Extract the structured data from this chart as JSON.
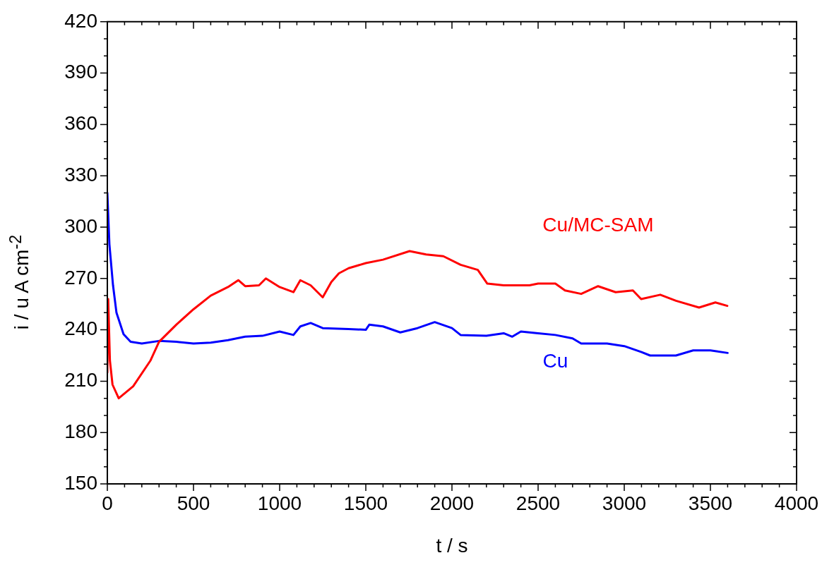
{
  "chart_data": {
    "type": "line",
    "xlabel": "t / s",
    "ylabel": "i / u A cm$^{-2}$",
    "xlim": [
      0,
      4000
    ],
    "ylim": [
      150,
      420
    ],
    "xticks": [
      0,
      {
        "value": 100,
        "label": null
      },
      {
        "value": 200,
        "label": null
      },
      {
        "value": 300,
        "label": null
      },
      {
        "value": 400,
        "label": null
      },
      500,
      {
        "value": 600,
        "label": null
      },
      {
        "value": 700,
        "label": null
      },
      {
        "value": 800,
        "label": null
      },
      {
        "value": 900,
        "label": null
      },
      1000,
      {
        "value": 1100,
        "label": null
      },
      {
        "value": 1200,
        "label": null
      },
      {
        "value": 1300,
        "label": null
      },
      {
        "value": 1400,
        "label": null
      },
      1500,
      {
        "value": 1600,
        "label": null
      },
      {
        "value": 1700,
        "label": null
      },
      {
        "value": 1800,
        "label": null
      },
      {
        "value": 1900,
        "label": null
      },
      2000,
      {
        "value": 2100,
        "label": null
      },
      {
        "value": 2200,
        "label": null
      },
      {
        "value": 2300,
        "label": null
      },
      {
        "value": 2400,
        "label": null
      },
      2500,
      {
        "value": 2600,
        "label": null
      },
      {
        "value": 2700,
        "label": null
      },
      {
        "value": 2800,
        "label": null
      },
      {
        "value": 2900,
        "label": null
      },
      3000,
      {
        "value": 3100,
        "label": null
      },
      {
        "value": 3200,
        "label": null
      },
      {
        "value": 3300,
        "label": null
      },
      {
        "value": 3400,
        "label": null
      },
      3500,
      {
        "value": 3600,
        "label": null
      },
      {
        "value": 3700,
        "label": null
      },
      {
        "value": 3800,
        "label": null
      },
      {
        "value": 3900,
        "label": null
      },
      4000
    ],
    "yticks": [
      150,
      {
        "value": 160,
        "label": null
      },
      {
        "value": 170,
        "label": null
      },
      180,
      {
        "value": 190,
        "label": null
      },
      {
        "value": 200,
        "label": null
      },
      210,
      {
        "value": 220,
        "label": null
      },
      {
        "value": 230,
        "label": null
      },
      240,
      {
        "value": 250,
        "label": null
      },
      {
        "value": 260,
        "label": null
      },
      270,
      {
        "value": 280,
        "label": null
      },
      {
        "value": 290,
        "label": null
      },
      300,
      {
        "value": 310,
        "label": null
      },
      {
        "value": 320,
        "label": null
      },
      330,
      {
        "value": 340,
        "label": null
      },
      {
        "value": 350,
        "label": null
      },
      360,
      {
        "value": 370,
        "label": null
      },
      {
        "value": 380,
        "label": null
      },
      390,
      {
        "value": 400,
        "label": null
      },
      {
        "value": 410,
        "label": null
      },
      420
    ],
    "grid": false,
    "legend": false,
    "marker": "none",
    "line_style": "solid",
    "series": [
      {
        "name": "Cu/MC-SAM",
        "color": "#ff0000",
        "x": [
          0,
          5,
          15,
          30,
          66,
          150,
          250,
          300,
          400,
          500,
          600,
          700,
          760,
          800,
          880,
          920,
          1000,
          1080,
          1120,
          1180,
          1250,
          1300,
          1344,
          1400,
          1500,
          1600,
          1754,
          1850,
          1950,
          2050,
          2150,
          2205,
          2300,
          2450,
          2500,
          2600,
          2656,
          2750,
          2848,
          2950,
          3050,
          3098,
          3209,
          3300,
          3434,
          3529,
          3598
        ],
        "values": [
          215,
          258,
          222,
          208,
          200,
          207,
          222,
          233,
          243,
          252,
          260,
          265,
          269,
          265.5,
          266,
          270,
          265,
          262,
          269,
          266,
          259,
          268,
          273,
          276,
          279,
          281,
          286,
          284,
          283,
          278,
          275,
          267,
          266,
          266,
          267,
          267,
          263,
          261,
          265.5,
          262,
          263,
          258,
          260.5,
          257,
          253,
          256,
          254
        ]
      },
      {
        "name": "Cu",
        "color": "#0000ff",
        "x": [
          0,
          12,
          33,
          53,
          94,
          135,
          200,
          300,
          400,
          500,
          600,
          700,
          800,
          900,
          1000,
          1080,
          1120,
          1180,
          1250,
          1400,
          1500,
          1520,
          1600,
          1700,
          1800,
          1900,
          2000,
          2050,
          2200,
          2300,
          2350,
          2400,
          2500,
          2600,
          2700,
          2750,
          2900,
          3000,
          3100,
          3150,
          3300,
          3400,
          3500,
          3600
        ],
        "values": [
          320,
          290,
          266,
          250,
          237.5,
          233,
          232,
          233.5,
          233,
          232,
          232.5,
          234,
          236,
          236.5,
          239,
          237,
          242,
          244,
          241,
          240.5,
          240,
          243,
          242,
          238.5,
          241,
          244.5,
          241,
          237,
          236.5,
          238,
          236,
          239,
          238,
          237,
          235,
          232,
          232,
          230.5,
          227,
          225,
          225,
          228,
          228,
          226.5
        ]
      }
    ]
  }
}
